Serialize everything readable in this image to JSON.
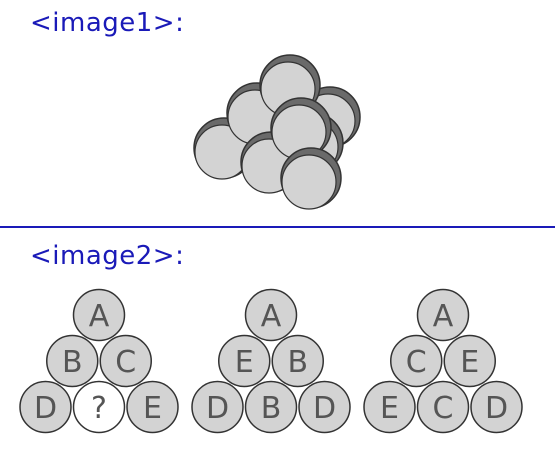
{
  "labels": {
    "image1": "<image1>:",
    "image2": "<image2>:"
  },
  "colors": {
    "label": "#1a1ab8",
    "ball_fill": "#d3d3d3",
    "ball_shadow": "#6a6a6a",
    "ball_stroke": "#333333",
    "unknown_fill": "#ffffff"
  },
  "pyramids": [
    {
      "rows": [
        [
          "A"
        ],
        [
          "B",
          "C"
        ],
        [
          "D",
          "?",
          "E"
        ]
      ],
      "unknown": "?"
    },
    {
      "rows": [
        [
          "A"
        ],
        [
          "E",
          "B"
        ],
        [
          "D",
          "B",
          "D"
        ]
      ]
    },
    {
      "rows": [
        [
          "A"
        ],
        [
          "C",
          "E"
        ],
        [
          "E",
          "C",
          "D"
        ]
      ]
    }
  ]
}
